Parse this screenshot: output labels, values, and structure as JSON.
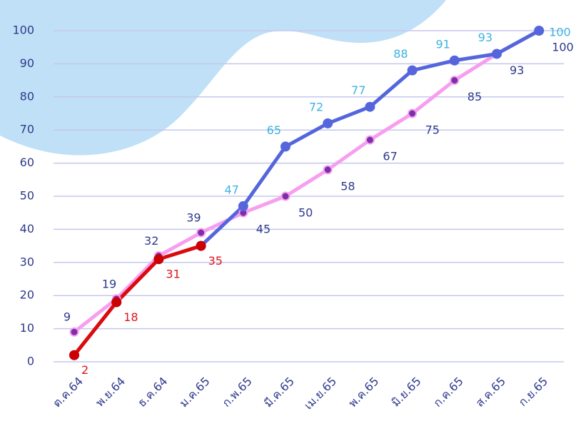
{
  "chart_data": {
    "type": "line",
    "categories": [
      "ต.ค.64",
      "พ.ย.64",
      "ธ.ค.64",
      "ม.ค.65",
      "ก.พ.65",
      "มี.ค.65",
      "เม.ย.65",
      "พ.ค.65",
      "มิ.ย.65",
      "ก.ค.65",
      "ส.ค.65",
      "ก.ย.65"
    ],
    "series": [
      {
        "color": "#f79ef0",
        "marker_color": "#7b2fa8",
        "label_color": "#2e3a8c",
        "values": [
          9,
          19,
          32,
          39,
          45,
          50,
          58,
          67,
          75,
          85,
          93,
          100
        ]
      },
      {
        "color": "#5566dd",
        "marker_color": "#5566dd",
        "label_color": "#3bb3e0",
        "values": [
          2,
          18,
          31,
          35,
          47,
          65,
          72,
          77,
          88,
          91,
          93,
          100
        ],
        "value_labels": [
          null,
          null,
          null,
          null,
          "47",
          "65",
          "72",
          "77",
          "88",
          "91",
          "93",
          "100"
        ]
      },
      {
        "color": "#dd0a0a",
        "marker_color": "#cc0000",
        "label_color": "#e0151b",
        "values": [
          2,
          18,
          31,
          35,
          null,
          null,
          null,
          null,
          null,
          null,
          null,
          null
        ]
      }
    ],
    "ylim": [
      0,
      100
    ],
    "yticks": [
      0,
      10,
      20,
      30,
      40,
      50,
      60,
      70,
      80,
      90,
      100
    ],
    "grid": true
  }
}
